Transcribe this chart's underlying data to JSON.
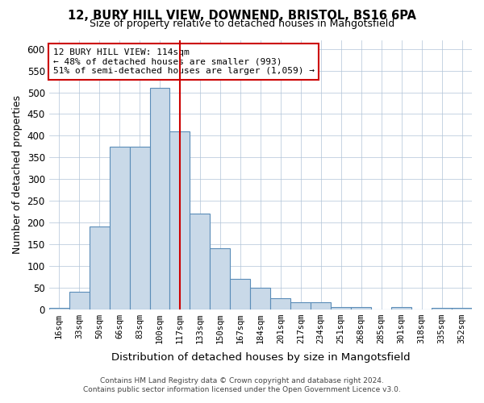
{
  "title_line1": "12, BURY HILL VIEW, DOWNEND, BRISTOL, BS16 6PA",
  "title_line2": "Size of property relative to detached houses in Mangotsfield",
  "xlabel": "Distribution of detached houses by size in Mangotsfield",
  "ylabel": "Number of detached properties",
  "annotation_line1": "12 BURY HILL VIEW: 114sqm",
  "annotation_line2": "← 48% of detached houses are smaller (993)",
  "annotation_line3": "51% of semi-detached houses are larger (1,059) →",
  "footer_line1": "Contains HM Land Registry data © Crown copyright and database right 2024.",
  "footer_line2": "Contains public sector information licensed under the Open Government Licence v3.0.",
  "bar_color": "#c9d9e8",
  "bar_edge_color": "#5b8db8",
  "grid_color": "#b0c4d8",
  "vline_color": "#cc0000",
  "vline_x": 6,
  "categories": [
    "16sqm",
    "33sqm",
    "50sqm",
    "66sqm",
    "83sqm",
    "100sqm",
    "117sqm",
    "133sqm",
    "150sqm",
    "167sqm",
    "184sqm",
    "201sqm",
    "217sqm",
    "234sqm",
    "251sqm",
    "268sqm",
    "285sqm",
    "301sqm",
    "318sqm",
    "335sqm",
    "352sqm"
  ],
  "values": [
    2,
    40,
    190,
    375,
    375,
    510,
    410,
    220,
    140,
    70,
    50,
    25,
    15,
    15,
    5,
    5,
    0,
    5,
    0,
    2,
    2
  ],
  "ylim": [
    0,
    620
  ],
  "yticks": [
    0,
    50,
    100,
    150,
    200,
    250,
    300,
    350,
    400,
    450,
    500,
    550,
    600
  ],
  "annotation_box_color": "#ffffff",
  "annotation_box_edge": "#cc0000"
}
